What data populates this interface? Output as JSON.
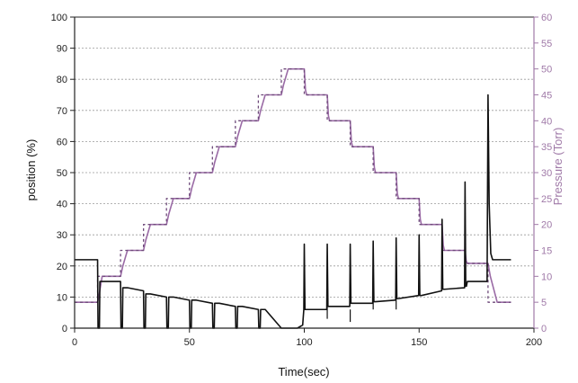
{
  "chart_data": {
    "type": "line",
    "title": "",
    "xlabel": "Time(sec)",
    "ylabel": "position (%)",
    "y2label": "Pressure (Torr)",
    "xlim": [
      0,
      200
    ],
    "ylim": [
      0,
      100
    ],
    "y2lim": [
      0,
      60
    ],
    "xticks": [
      0,
      50,
      100,
      150,
      200
    ],
    "yticks": [
      0,
      10,
      20,
      30,
      40,
      50,
      60,
      70,
      80,
      90,
      100
    ],
    "y2ticks": [
      0,
      5,
      10,
      15,
      20,
      25,
      30,
      35,
      40,
      45,
      50,
      55,
      60
    ],
    "grid": true,
    "legend": "none",
    "colors": {
      "position": "#111111",
      "pressure_measured": "#9a6aa5",
      "pressure_setpoint": "#6e4a7a",
      "grid": "#9a9a9a",
      "right_axis": "#a07aa8"
    },
    "series": [
      {
        "axis": "right",
        "style": "solid",
        "x": [
          0,
          10,
          10.5,
          12,
          20,
          21,
          23,
          30,
          31,
          33,
          40,
          41,
          43,
          50,
          51,
          53,
          60,
          61,
          63,
          70,
          71,
          73,
          80,
          81,
          83,
          90,
          91,
          93,
          100,
          100.5,
          101,
          110,
          110.5,
          111,
          120,
          120.5,
          121,
          130,
          130.5,
          131,
          140,
          140.5,
          141,
          150,
          150.5,
          151,
          160,
          160.5,
          161,
          170,
          170.5,
          171,
          180,
          181,
          184,
          190
        ],
        "y": [
          5,
          5,
          6,
          10,
          10,
          12,
          15,
          15,
          17,
          20,
          20,
          22,
          25,
          25,
          27,
          30,
          30,
          32,
          35,
          35,
          37,
          40,
          40,
          42,
          45,
          45,
          47,
          50,
          50,
          46,
          45,
          45,
          41,
          40,
          40,
          36,
          35,
          35,
          31,
          30,
          30,
          26,
          25,
          25,
          21,
          20,
          20,
          16,
          15,
          15,
          13,
          12.5,
          12.5,
          10,
          5,
          5
        ]
      },
      {
        "axis": "right",
        "style": "dotted",
        "x": [
          0,
          10,
          10,
          20,
          20,
          30,
          30,
          40,
          40,
          50,
          50,
          60,
          60,
          70,
          70,
          80,
          80,
          90,
          90,
          100,
          100,
          110,
          110,
          120,
          120,
          130,
          130,
          140,
          140,
          150,
          150,
          160,
          160,
          170,
          170,
          180,
          180,
          190
        ],
        "y": [
          5,
          5,
          10,
          10,
          15,
          15,
          20,
          20,
          25,
          25,
          30,
          30,
          35,
          35,
          40,
          40,
          45,
          45,
          50,
          50,
          45,
          45,
          40,
          40,
          35,
          35,
          30,
          30,
          25,
          25,
          20,
          20,
          15,
          15,
          12.5,
          12.5,
          5,
          5
        ]
      },
      {
        "axis": "left",
        "style": "solid",
        "x": [
          0,
          10,
          10.2,
          10.8,
          11,
          13,
          20,
          20.2,
          20.8,
          21,
          23,
          30,
          30.2,
          30.8,
          31,
          33,
          40,
          40.2,
          40.8,
          41,
          43,
          50,
          50.2,
          50.8,
          51,
          53,
          60,
          60.2,
          60.8,
          61,
          63,
          70,
          70.2,
          70.8,
          71,
          73,
          80,
          80.2,
          80.8,
          81,
          83,
          90,
          90.2,
          97,
          99.3,
          99.8,
          100,
          100.3,
          100.6,
          101,
          109.8,
          110,
          110.3,
          110.6,
          111,
          119.8,
          120,
          120.3,
          120.6,
          121,
          129.8,
          130,
          130.3,
          130.6,
          131,
          139.8,
          140,
          140.3,
          140.6,
          141,
          149.8,
          150,
          150.3,
          150.6,
          151,
          159.8,
          160,
          160.3,
          160.6,
          161,
          169.8,
          170,
          170.3,
          170.6,
          171,
          179.6,
          180,
          180.5,
          181.2,
          182,
          184,
          190
        ],
        "y": [
          22,
          22,
          0,
          0,
          15,
          15,
          15,
          0,
          0,
          13,
          13,
          12,
          0,
          0,
          11,
          11,
          10,
          0,
          0,
          10,
          10,
          9,
          0,
          0,
          9,
          9,
          8,
          0,
          0,
          8,
          8,
          7,
          0,
          0,
          7,
          7,
          6,
          0,
          0,
          6,
          6,
          0,
          0,
          0,
          1,
          6,
          27,
          6,
          6,
          6,
          6,
          27,
          7,
          7,
          7,
          7,
          27,
          8,
          8,
          8,
          8,
          28,
          8.5,
          8.5,
          8.5,
          9,
          29,
          9.5,
          9.5,
          9.5,
          10.5,
          30,
          10.5,
          10.5,
          10.5,
          12,
          35,
          12.5,
          12.5,
          12.5,
          13,
          47,
          13.5,
          13.5,
          15,
          15,
          75,
          40,
          24,
          22,
          22,
          22
        ]
      }
    ],
    "spike_dips": {
      "x": [
        110,
        120,
        130,
        140
      ],
      "y": [
        3,
        2,
        6,
        6
      ]
    }
  }
}
